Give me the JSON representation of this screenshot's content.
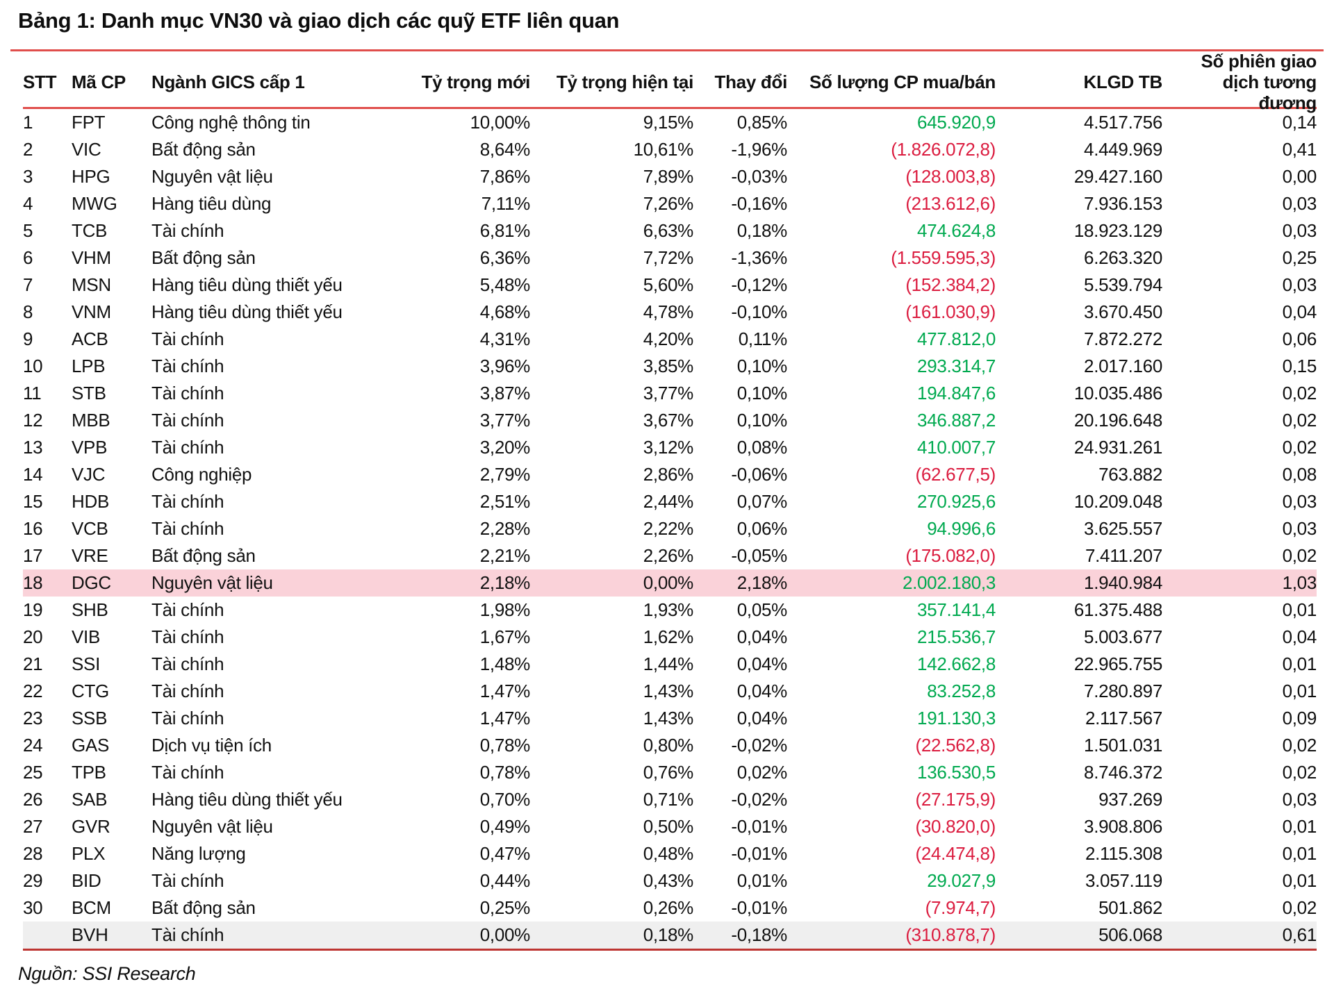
{
  "title": "Bảng 1: Danh mục VN30 và giao dịch các quỹ ETF liên quan",
  "source": "Nguồn: SSI Research",
  "colors": {
    "rule_red": "#e04e4b",
    "rule_red_dark": "#bd3431",
    "positive_green": "#00a94f",
    "negative_red": "#db1c3f",
    "highlight_pink": "#fad2d9",
    "summary_gray": "#efefef"
  },
  "table": {
    "headers": [
      "STT",
      "Mã CP",
      "Ngành GICS cấp 1",
      "Tỷ trọng mới",
      "Tỷ trọng hiện tại",
      "Thay đổi",
      "Số lượng CP mua/bán",
      "KLGD TB",
      "Số phiên giao dịch tương đương"
    ],
    "rows": [
      {
        "stt": "1",
        "ticker": "FPT",
        "sector": "Công nghệ thông tin",
        "w_new": "10,00%",
        "w_cur": "9,15%",
        "change": "0,85%",
        "shares": "645.920,9",
        "shares_sign": "pos",
        "klgd": "4.517.756",
        "sessions": "0,14",
        "bg": ""
      },
      {
        "stt": "2",
        "ticker": "VIC",
        "sector": "Bất động sản",
        "w_new": "8,64%",
        "w_cur": "10,61%",
        "change": "-1,96%",
        "shares": "(1.826.072,8)",
        "shares_sign": "neg",
        "klgd": "4.449.969",
        "sessions": "0,41",
        "bg": ""
      },
      {
        "stt": "3",
        "ticker": "HPG",
        "sector": "Nguyên vật liệu",
        "w_new": "7,86%",
        "w_cur": "7,89%",
        "change": "-0,03%",
        "shares": "(128.003,8)",
        "shares_sign": "neg",
        "klgd": "29.427.160",
        "sessions": "0,00",
        "bg": ""
      },
      {
        "stt": "4",
        "ticker": "MWG",
        "sector": "Hàng tiêu dùng",
        "w_new": "7,11%",
        "w_cur": "7,26%",
        "change": "-0,16%",
        "shares": "(213.612,6)",
        "shares_sign": "neg",
        "klgd": "7.936.153",
        "sessions": "0,03",
        "bg": ""
      },
      {
        "stt": "5",
        "ticker": "TCB",
        "sector": "Tài chính",
        "w_new": "6,81%",
        "w_cur": "6,63%",
        "change": "0,18%",
        "shares": "474.624,8",
        "shares_sign": "pos",
        "klgd": "18.923.129",
        "sessions": "0,03",
        "bg": ""
      },
      {
        "stt": "6",
        "ticker": "VHM",
        "sector": "Bất động sản",
        "w_new": "6,36%",
        "w_cur": "7,72%",
        "change": "-1,36%",
        "shares": "(1.559.595,3)",
        "shares_sign": "neg",
        "klgd": "6.263.320",
        "sessions": "0,25",
        "bg": ""
      },
      {
        "stt": "7",
        "ticker": "MSN",
        "sector": "Hàng tiêu dùng thiết yếu",
        "w_new": "5,48%",
        "w_cur": "5,60%",
        "change": "-0,12%",
        "shares": "(152.384,2)",
        "shares_sign": "neg",
        "klgd": "5.539.794",
        "sessions": "0,03",
        "bg": ""
      },
      {
        "stt": "8",
        "ticker": "VNM",
        "sector": "Hàng tiêu dùng thiết yếu",
        "w_new": "4,68%",
        "w_cur": "4,78%",
        "change": "-0,10%",
        "shares": "(161.030,9)",
        "shares_sign": "neg",
        "klgd": "3.670.450",
        "sessions": "0,04",
        "bg": ""
      },
      {
        "stt": "9",
        "ticker": "ACB",
        "sector": "Tài chính",
        "w_new": "4,31%",
        "w_cur": "4,20%",
        "change": "0,11%",
        "shares": "477.812,0",
        "shares_sign": "pos",
        "klgd": "7.872.272",
        "sessions": "0,06",
        "bg": ""
      },
      {
        "stt": "10",
        "ticker": "LPB",
        "sector": "Tài chính",
        "w_new": "3,96%",
        "w_cur": "3,85%",
        "change": "0,10%",
        "shares": "293.314,7",
        "shares_sign": "pos",
        "klgd": "2.017.160",
        "sessions": "0,15",
        "bg": ""
      },
      {
        "stt": "11",
        "ticker": "STB",
        "sector": "Tài chính",
        "w_new": "3,87%",
        "w_cur": "3,77%",
        "change": "0,10%",
        "shares": "194.847,6",
        "shares_sign": "pos",
        "klgd": "10.035.486",
        "sessions": "0,02",
        "bg": ""
      },
      {
        "stt": "12",
        "ticker": "MBB",
        "sector": "Tài chính",
        "w_new": "3,77%",
        "w_cur": "3,67%",
        "change": "0,10%",
        "shares": "346.887,2",
        "shares_sign": "pos",
        "klgd": "20.196.648",
        "sessions": "0,02",
        "bg": ""
      },
      {
        "stt": "13",
        "ticker": "VPB",
        "sector": "Tài chính",
        "w_new": "3,20%",
        "w_cur": "3,12%",
        "change": "0,08%",
        "shares": "410.007,7",
        "shares_sign": "pos",
        "klgd": "24.931.261",
        "sessions": "0,02",
        "bg": ""
      },
      {
        "stt": "14",
        "ticker": "VJC",
        "sector": "Công nghiệp",
        "w_new": "2,79%",
        "w_cur": "2,86%",
        "change": "-0,06%",
        "shares": "(62.677,5)",
        "shares_sign": "neg",
        "klgd": "763.882",
        "sessions": "0,08",
        "bg": ""
      },
      {
        "stt": "15",
        "ticker": "HDB",
        "sector": "Tài chính",
        "w_new": "2,51%",
        "w_cur": "2,44%",
        "change": "0,07%",
        "shares": "270.925,6",
        "shares_sign": "pos",
        "klgd": "10.209.048",
        "sessions": "0,03",
        "bg": ""
      },
      {
        "stt": "16",
        "ticker": "VCB",
        "sector": "Tài chính",
        "w_new": "2,28%",
        "w_cur": "2,22%",
        "change": "0,06%",
        "shares": "94.996,6",
        "shares_sign": "pos",
        "klgd": "3.625.557",
        "sessions": "0,03",
        "bg": ""
      },
      {
        "stt": "17",
        "ticker": "VRE",
        "sector": "Bất động sản",
        "w_new": "2,21%",
        "w_cur": "2,26%",
        "change": "-0,05%",
        "shares": "(175.082,0)",
        "shares_sign": "neg",
        "klgd": "7.411.207",
        "sessions": "0,02",
        "bg": ""
      },
      {
        "stt": "18",
        "ticker": "DGC",
        "sector": "Nguyên vật liệu",
        "w_new": "2,18%",
        "w_cur": "0,00%",
        "change": "2,18%",
        "shares": "2.002.180,3",
        "shares_sign": "pos",
        "klgd": "1.940.984",
        "sessions": "1,03",
        "bg": "pink"
      },
      {
        "stt": "19",
        "ticker": "SHB",
        "sector": "Tài chính",
        "w_new": "1,98%",
        "w_cur": "1,93%",
        "change": "0,05%",
        "shares": "357.141,4",
        "shares_sign": "pos",
        "klgd": "61.375.488",
        "sessions": "0,01",
        "bg": ""
      },
      {
        "stt": "20",
        "ticker": "VIB",
        "sector": "Tài chính",
        "w_new": "1,67%",
        "w_cur": "1,62%",
        "change": "0,04%",
        "shares": "215.536,7",
        "shares_sign": "pos",
        "klgd": "5.003.677",
        "sessions": "0,04",
        "bg": ""
      },
      {
        "stt": "21",
        "ticker": "SSI",
        "sector": "Tài chính",
        "w_new": "1,48%",
        "w_cur": "1,44%",
        "change": "0,04%",
        "shares": "142.662,8",
        "shares_sign": "pos",
        "klgd": "22.965.755",
        "sessions": "0,01",
        "bg": ""
      },
      {
        "stt": "22",
        "ticker": "CTG",
        "sector": "Tài chính",
        "w_new": "1,47%",
        "w_cur": "1,43%",
        "change": "0,04%",
        "shares": "83.252,8",
        "shares_sign": "pos",
        "klgd": "7.280.897",
        "sessions": "0,01",
        "bg": ""
      },
      {
        "stt": "23",
        "ticker": "SSB",
        "sector": "Tài chính",
        "w_new": "1,47%",
        "w_cur": "1,43%",
        "change": "0,04%",
        "shares": "191.130,3",
        "shares_sign": "pos",
        "klgd": "2.117.567",
        "sessions": "0,09",
        "bg": ""
      },
      {
        "stt": "24",
        "ticker": "GAS",
        "sector": "Dịch vụ tiện ích",
        "w_new": "0,78%",
        "w_cur": "0,80%",
        "change": "-0,02%",
        "shares": "(22.562,8)",
        "shares_sign": "neg",
        "klgd": "1.501.031",
        "sessions": "0,02",
        "bg": ""
      },
      {
        "stt": "25",
        "ticker": "TPB",
        "sector": "Tài chính",
        "w_new": "0,78%",
        "w_cur": "0,76%",
        "change": "0,02%",
        "shares": "136.530,5",
        "shares_sign": "pos",
        "klgd": "8.746.372",
        "sessions": "0,02",
        "bg": ""
      },
      {
        "stt": "26",
        "ticker": "SAB",
        "sector": "Hàng tiêu dùng thiết yếu",
        "w_new": "0,70%",
        "w_cur": "0,71%",
        "change": "-0,02%",
        "shares": "(27.175,9)",
        "shares_sign": "neg",
        "klgd": "937.269",
        "sessions": "0,03",
        "bg": ""
      },
      {
        "stt": "27",
        "ticker": "GVR",
        "sector": "Nguyên vật liệu",
        "w_new": "0,49%",
        "w_cur": "0,50%",
        "change": "-0,01%",
        "shares": "(30.820,0)",
        "shares_sign": "neg",
        "klgd": "3.908.806",
        "sessions": "0,01",
        "bg": ""
      },
      {
        "stt": "28",
        "ticker": "PLX",
        "sector": "Năng lượng",
        "w_new": "0,47%",
        "w_cur": "0,48%",
        "change": "-0,01%",
        "shares": "(24.474,8)",
        "shares_sign": "neg",
        "klgd": "2.115.308",
        "sessions": "0,01",
        "bg": ""
      },
      {
        "stt": "29",
        "ticker": "BID",
        "sector": "Tài chính",
        "w_new": "0,44%",
        "w_cur": "0,43%",
        "change": "0,01%",
        "shares": "29.027,9",
        "shares_sign": "pos",
        "klgd": "3.057.119",
        "sessions": "0,01",
        "bg": ""
      },
      {
        "stt": "30",
        "ticker": "BCM",
        "sector": "Bất động sản",
        "w_new": "0,25%",
        "w_cur": "0,26%",
        "change": "-0,01%",
        "shares": "(7.974,7)",
        "shares_sign": "neg",
        "klgd": "501.862",
        "sessions": "0,02",
        "bg": ""
      },
      {
        "stt": "",
        "ticker": "BVH",
        "sector": "Tài chính",
        "w_new": "0,00%",
        "w_cur": "0,18%",
        "change": "-0,18%",
        "shares": "(310.878,7)",
        "shares_sign": "neg",
        "klgd": "506.068",
        "sessions": "0,61",
        "bg": "gray"
      }
    ]
  }
}
